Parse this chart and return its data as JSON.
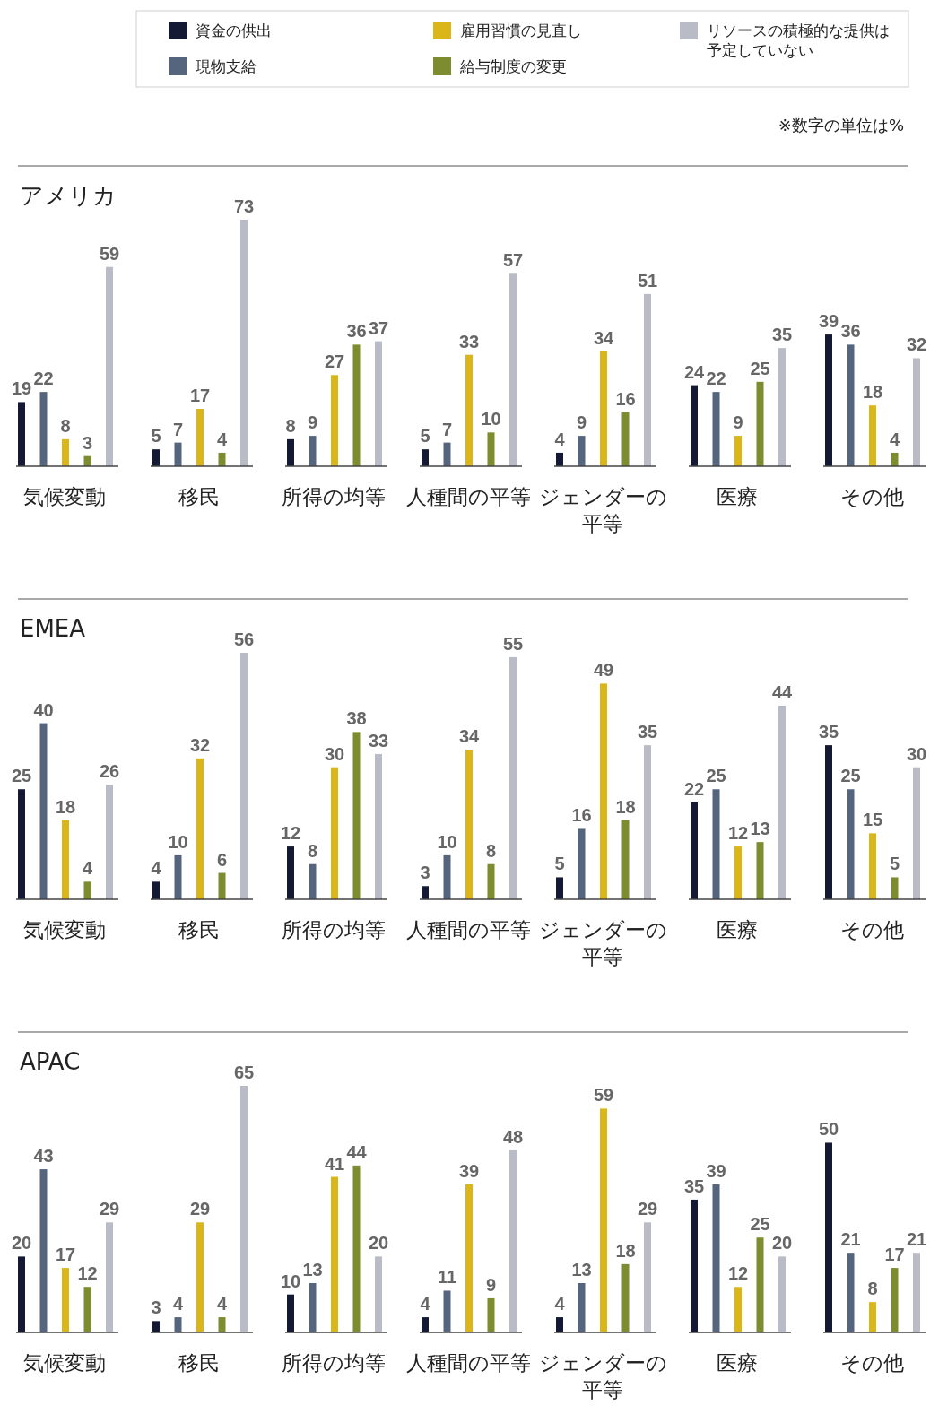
{
  "chart_data": [
    {
      "type": "bar",
      "title": "アメリカ",
      "categories": [
        "気候変動",
        "移民",
        "所得の均等",
        "人種間の平等",
        "ジェンダーの平等",
        "医療",
        "その他"
      ],
      "data_labels": true,
      "legend": "top",
      "annotations": [
        "※数字の単位は%"
      ],
      "series": [
        {
          "name": "資金の供出",
          "color": "#141a33",
          "values": [
            19,
            5,
            8,
            5,
            4,
            24,
            39
          ]
        },
        {
          "name": "現物支給",
          "color": "#56657e",
          "values": [
            22,
            7,
            9,
            7,
            9,
            22,
            36
          ]
        },
        {
          "name": "雇用習慣の見直し",
          "color": "#dbb619",
          "values": [
            8,
            17,
            27,
            33,
            34,
            9,
            18
          ]
        },
        {
          "name": "給与制度の変更",
          "color": "#7d8c2e",
          "values": [
            3,
            4,
            36,
            10,
            16,
            25,
            4
          ]
        },
        {
          "name": "リソースの積極的な提供は予定していない",
          "color": "#b9bcc6",
          "values": [
            59,
            73,
            37,
            57,
            51,
            35,
            32
          ]
        }
      ]
    },
    {
      "type": "bar",
      "title": "EMEA",
      "categories": [
        "気候変動",
        "移民",
        "所得の均等",
        "人種間の平等",
        "ジェンダーの平等",
        "医療",
        "その他"
      ],
      "data_labels": true,
      "series": [
        {
          "color": "#141a33",
          "values": [
            25,
            4,
            12,
            3,
            5,
            22,
            35
          ]
        },
        {
          "color": "#56657e",
          "values": [
            40,
            10,
            8,
            10,
            16,
            25,
            25
          ]
        },
        {
          "color": "#dbb619",
          "values": [
            18,
            32,
            30,
            34,
            49,
            12,
            15
          ]
        },
        {
          "color": "#7d8c2e",
          "values": [
            4,
            6,
            38,
            8,
            18,
            13,
            5
          ]
        },
        {
          "color": "#b9bcc6",
          "values": [
            26,
            56,
            33,
            55,
            35,
            44,
            30
          ]
        }
      ]
    },
    {
      "type": "bar",
      "title": "APAC",
      "categories": [
        "気候変動",
        "移民",
        "所得の均等",
        "人種間の平等",
        "ジェンダーの平等",
        "医療",
        "その他"
      ],
      "data_labels": true,
      "series": [
        {
          "color": "#141a33",
          "values": [
            20,
            3,
            10,
            4,
            4,
            35,
            50
          ]
        },
        {
          "color": "#56657e",
          "values": [
            43,
            4,
            13,
            11,
            13,
            39,
            21
          ]
        },
        {
          "color": "#dbb619",
          "values": [
            17,
            29,
            41,
            39,
            59,
            12,
            8
          ]
        },
        {
          "color": "#7d8c2e",
          "values": [
            12,
            4,
            44,
            9,
            18,
            25,
            17
          ]
        },
        {
          "color": "#b9bcc6",
          "values": [
            29,
            65,
            20,
            48,
            29,
            20,
            21
          ]
        }
      ]
    }
  ]
}
